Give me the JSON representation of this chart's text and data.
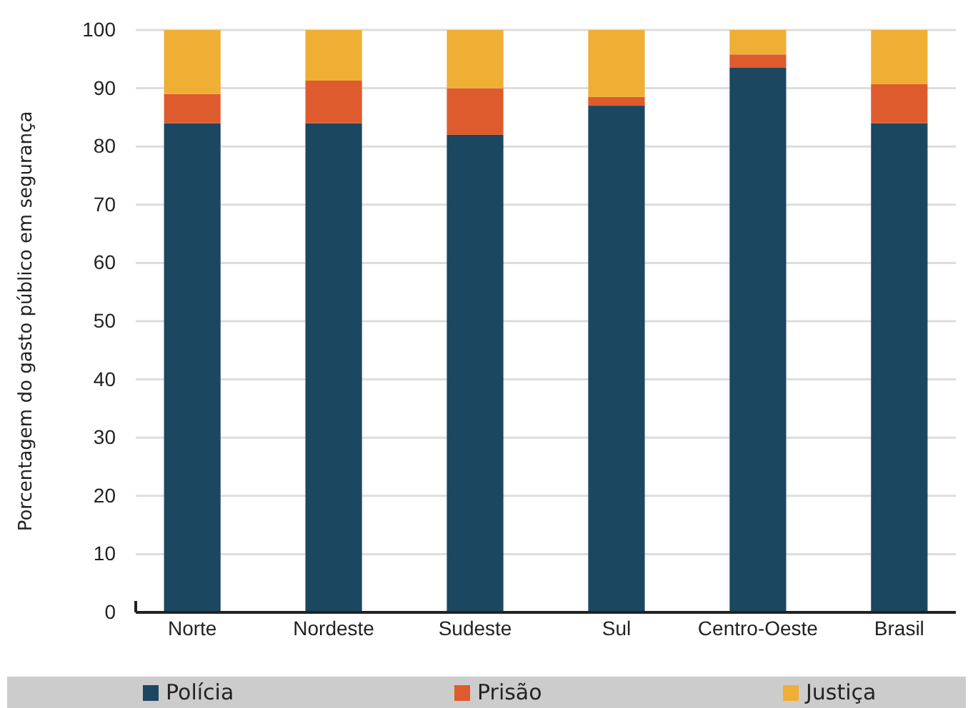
{
  "chart_data": {
    "type": "bar",
    "stacked": true,
    "ylabel": "Porcentagem do gasto público em segurança",
    "categories": [
      "Norte",
      "Nordeste",
      "Sudeste",
      "Sul",
      "Centro-Oeste",
      "Brasil"
    ],
    "series": [
      {
        "name": "Polícia",
        "color": "#1b4760",
        "values": [
          84,
          84,
          82,
          87,
          93.5,
          84
        ]
      },
      {
        "name": "Prisão",
        "color": "#de5b2e",
        "values": [
          5,
          7.3,
          8,
          1.5,
          2.3,
          6.7
        ]
      },
      {
        "name": "Justiça",
        "color": "#efaf34",
        "values": [
          11,
          8.7,
          10,
          11.5,
          4.2,
          9.3
        ]
      }
    ],
    "ylim": [
      0,
      100
    ],
    "yticks": [
      0,
      10,
      20,
      30,
      40,
      50,
      60,
      70,
      80,
      90,
      100
    ],
    "grid": "y",
    "legend": "bottom"
  }
}
